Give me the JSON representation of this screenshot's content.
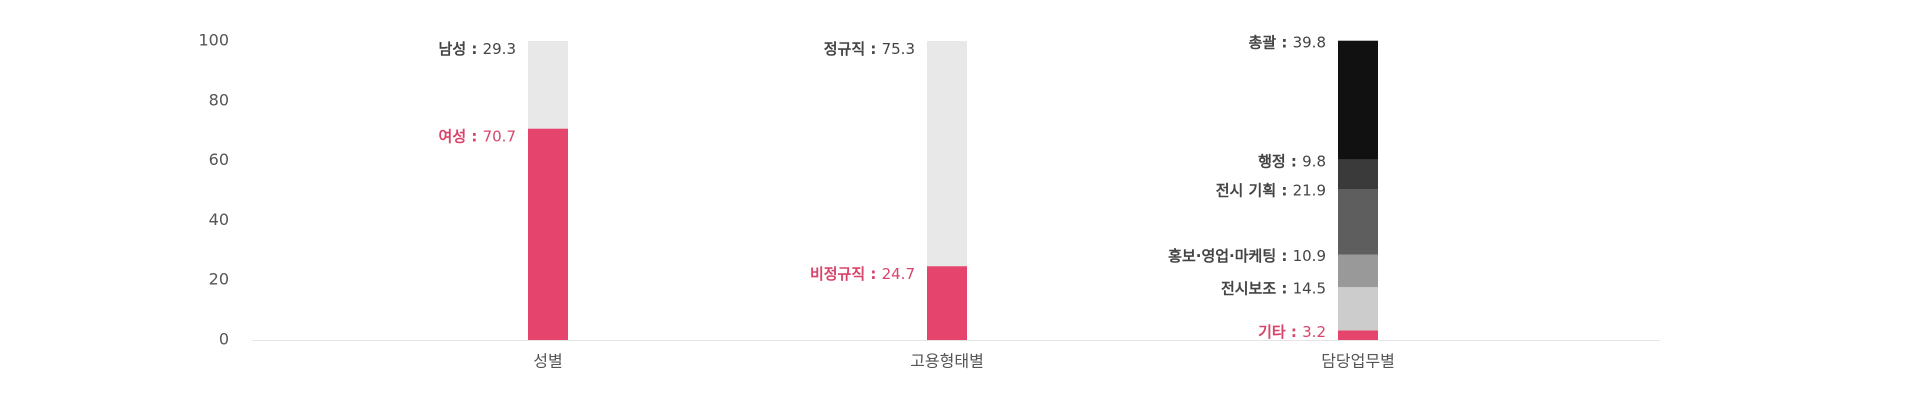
{
  "colors": {
    "accent": "#e5446d",
    "light_gray": "#e8e8e8",
    "gray_1": "#111111",
    "gray_2": "#3a3a3a",
    "gray_3": "#5e5e5e",
    "gray_4": "#999999",
    "gray_5": "#cccccc",
    "label_dark": "#444444",
    "axis_text": "#555555",
    "baseline": "#e5e5e5"
  },
  "chart_data": {
    "type": "bar",
    "stacked": true,
    "ylim": [
      0,
      100
    ],
    "yticks": [
      0,
      20,
      40,
      60,
      80,
      100
    ],
    "grid": false,
    "categories": [
      "성별",
      "고용형태별",
      "담당업무별"
    ],
    "bars": [
      {
        "category": "성별",
        "segments": [
          {
            "name": "여성",
            "value": 70.7,
            "value_text": "70.7",
            "color": "#e5446d",
            "label_color": "#d9456a"
          },
          {
            "name": "남성",
            "value": 29.3,
            "value_text": "29.3",
            "color": "#e8e8e8",
            "label_color": "#444444"
          }
        ]
      },
      {
        "category": "고용형태별",
        "segments": [
          {
            "name": "비정규직",
            "value": 24.7,
            "value_text": "24.7",
            "color": "#e5446d",
            "label_color": "#d9456a"
          },
          {
            "name": "정규직",
            "value": 75.3,
            "value_text": "75.3",
            "color": "#e8e8e8",
            "label_color": "#444444"
          }
        ]
      },
      {
        "category": "담당업무별",
        "segments": [
          {
            "name": "기타",
            "value": 3.2,
            "value_text": "3.2",
            "color": "#e5446d",
            "label_color": "#d9456a"
          },
          {
            "name": "전시보조",
            "value": 14.5,
            "value_text": "14.5",
            "color": "#cccccc",
            "label_color": "#444444"
          },
          {
            "name": "홍보·영업·마케팅",
            "value": 10.9,
            "value_text": "10.9",
            "color": "#999999",
            "label_color": "#444444"
          },
          {
            "name": "전시 기획",
            "value": 21.9,
            "value_text": "21.9",
            "color": "#5e5e5e",
            "label_color": "#444444"
          },
          {
            "name": "행정",
            "value": 9.8,
            "value_text": "9.8",
            "color": "#3a3a3a",
            "label_color": "#444444"
          },
          {
            "name": "총괄",
            "value": 39.8,
            "value_text": "39.8",
            "color": "#111111",
            "label_color": "#444444"
          }
        ]
      }
    ]
  }
}
